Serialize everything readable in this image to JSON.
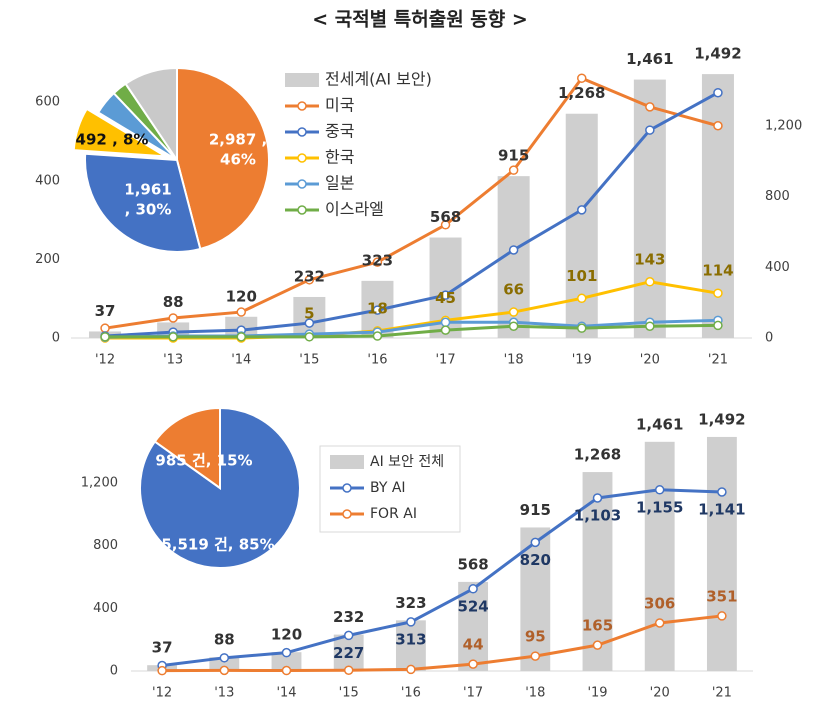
{
  "title": "< 국적별 특허출원 동향 >",
  "chart_data": [
    {
      "type": "combo",
      "categories": [
        "'12",
        "'13",
        "'14",
        "'15",
        "'16",
        "'17",
        "'18",
        "'19",
        "'20",
        "'21"
      ],
      "ylim": [
        0,
        720
      ],
      "yticks": [
        0,
        200,
        400,
        600
      ],
      "y2lim": [
        0,
        1600
      ],
      "y2ticks": [
        0,
        400,
        800,
        {
          "value": 1200,
          "label": "1,200"
        }
      ],
      "grid": false,
      "series": [
        {
          "name": "전세계(AI 보안)",
          "type": "bar",
          "axis": "y2",
          "color": "#cfcfcf",
          "values": [
            37,
            88,
            120,
            232,
            323,
            568,
            915,
            1268,
            1461,
            1492
          ],
          "value_labels": [
            "37",
            "88",
            "120",
            "232",
            "323",
            "568",
            "915",
            "1,268",
            "1,461",
            "1,492"
          ]
        },
        {
          "name": "미국",
          "type": "line",
          "color": "#ed7d31",
          "values": [
            25,
            51,
            66,
            148,
            193,
            288,
            427,
            661,
            588,
            540
          ]
        },
        {
          "name": "중국",
          "type": "line",
          "color": "#4472c4",
          "values": [
            5,
            15,
            20,
            38,
            71,
            109,
            224,
            326,
            529,
            624
          ]
        },
        {
          "name": "한국",
          "type": "line",
          "color": "#ffc000",
          "values": [
            0,
            0,
            0,
            5,
            18,
            45,
            66,
            101,
            143,
            114
          ],
          "value_labels": [
            null,
            null,
            null,
            "5",
            "18",
            "45",
            "66",
            "101",
            "143",
            "114"
          ]
        },
        {
          "name": "일본",
          "type": "line",
          "color": "#5b9bd5",
          "values": [
            2,
            5,
            5,
            10,
            15,
            40,
            40,
            30,
            40,
            45
          ]
        },
        {
          "name": "이스라엘",
          "type": "line",
          "color": "#70ad47",
          "values": [
            3,
            3,
            3,
            3,
            5,
            20,
            30,
            25,
            30,
            32
          ]
        }
      ]
    },
    {
      "type": "pie",
      "categories": [
        "미국",
        "중국",
        "한국",
        "일본",
        "이스라엘",
        null
      ],
      "values": [
        2987,
        1961,
        492,
        280,
        170,
        614
      ],
      "colors": [
        "#ed7d31",
        "#4472c4",
        "#ffc000",
        "#5b9bd5",
        "#70ad47",
        "#c9c9c9"
      ],
      "value_labels": [
        [
          "2,987 ,",
          "46%"
        ],
        [
          "1,961",
          ", 30%"
        ],
        [
          "492 , 8%"
        ],
        null,
        null,
        null
      ]
    },
    {
      "type": "combo",
      "categories": [
        "'12",
        "'13",
        "'14",
        "'15",
        "'16",
        "'17",
        "'18",
        "'19",
        "'20",
        "'21"
      ],
      "ylim": [
        0,
        1600
      ],
      "yticks": [
        0,
        400,
        800,
        {
          "value": 1200,
          "label": "1,200"
        }
      ],
      "grid": false,
      "series": [
        {
          "name": "AI 보안 전체",
          "type": "bar",
          "color": "#cfcfcf",
          "values": [
            37,
            88,
            120,
            232,
            323,
            568,
            915,
            1268,
            1461,
            1492
          ],
          "value_labels": [
            "37",
            "88",
            "120",
            "232",
            "323",
            "568",
            "915",
            "1,268",
            "1,461",
            "1,492"
          ]
        },
        {
          "name": "BY AI",
          "type": "line",
          "color": "#4472c4",
          "values": [
            35,
            84,
            117,
            227,
            313,
            524,
            820,
            1103,
            1155,
            1141
          ],
          "value_labels": [
            null,
            null,
            null,
            "227",
            "313",
            "524",
            "820",
            "1,103",
            "1,155",
            "1,141"
          ]
        },
        {
          "name": "FOR AI",
          "type": "line",
          "color": "#ed7d31",
          "values": [
            2,
            4,
            3,
            5,
            10,
            44,
            95,
            165,
            306,
            351
          ],
          "value_labels": [
            null,
            null,
            null,
            null,
            null,
            "44",
            "95",
            "165",
            "306",
            "351"
          ]
        }
      ]
    },
    {
      "type": "pie",
      "categories": [
        "BY AI",
        "FOR AI"
      ],
      "values": [
        5519,
        985
      ],
      "colors": [
        "#4472c4",
        "#ed7d31"
      ],
      "value_labels": [
        [
          "5,519 건, 85%"
        ],
        [
          "985 건, 15%"
        ]
      ]
    }
  ]
}
